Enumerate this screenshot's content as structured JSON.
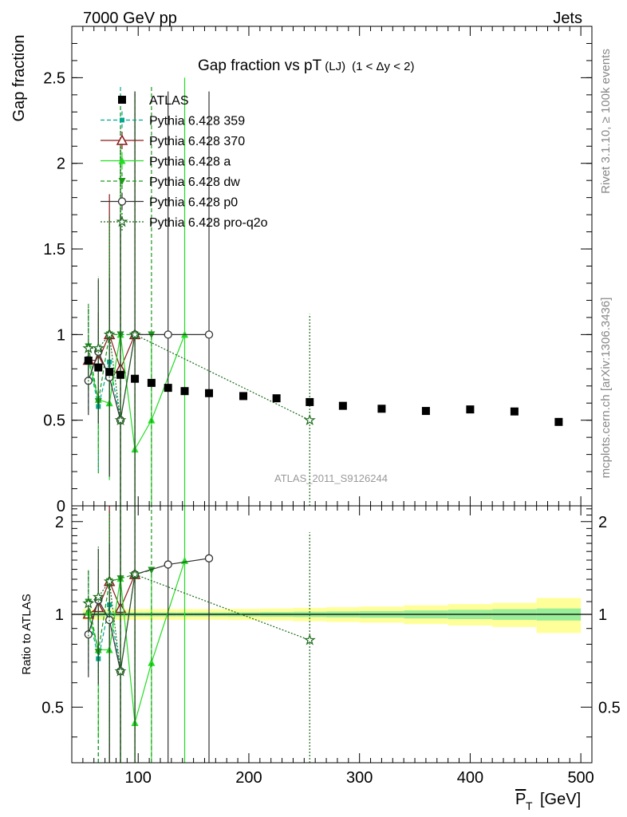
{
  "header": {
    "left": "7000 GeV pp",
    "right": "Jets"
  },
  "side": {
    "rivet": "Rivet 3.1.10, ≥ 100k events",
    "mcplots": "mcplots.cern.ch [arXiv:1306.3436]"
  },
  "chart_data": {
    "type": "scatter",
    "title": "Gap fraction vs pT",
    "title_sub": "(LJ)",
    "title_range": "(1 < Δy < 2)",
    "watermark": "ATLAS_2011_S9126244",
    "xlabel": "P",
    "xlabel_sub": "T",
    "xlabel_unit": "[GeV]",
    "ylabel": "Gap fraction",
    "ratio_ylabel": "Ratio to ATLAS",
    "xlim": [
      40,
      510
    ],
    "ylim": [
      0,
      2.8
    ],
    "ratio_ylim": [
      0.33,
      2.25
    ],
    "xticks": [
      100,
      200,
      300,
      400,
      500
    ],
    "xtick_labels": [
      "100",
      "200",
      "300",
      "400",
      "500"
    ],
    "yticks": [
      0,
      0.5,
      1,
      1.5,
      2,
      2.5
    ],
    "ytick_labels": [
      "0",
      "0.5",
      "1",
      "1.5",
      "2",
      "2.5"
    ],
    "ratio_yticks": [
      0.5,
      1,
      2
    ],
    "ratio_ytick_labels": [
      "0.5",
      "1",
      "2"
    ],
    "legend_position": "top-left",
    "data": {
      "name": "ATLAS",
      "x": [
        55,
        64,
        74,
        84,
        97,
        112,
        127,
        142,
        164,
        195,
        225,
        255,
        285,
        320,
        360,
        400,
        440,
        480
      ],
      "y": [
        0.848,
        0.808,
        0.782,
        0.765,
        0.742,
        0.718,
        0.689,
        0.67,
        0.658,
        0.641,
        0.628,
        0.606,
        0.584,
        0.567,
        0.554,
        0.563,
        0.551,
        0.49
      ],
      "band_edges": [
        50,
        60,
        70,
        80,
        90,
        105,
        120,
        135,
        150,
        180,
        210,
        240,
        270,
        300,
        340,
        380,
        420,
        460,
        500
      ],
      "band_stat": [
        0.015,
        0.015,
        0.015,
        0.015,
        0.015,
        0.015,
        0.015,
        0.015,
        0.015,
        0.016,
        0.018,
        0.02,
        0.022,
        0.025,
        0.03,
        0.035,
        0.04,
        0.045
      ],
      "band_total": [
        0.04,
        0.04,
        0.04,
        0.04,
        0.04,
        0.04,
        0.04,
        0.04,
        0.04,
        0.042,
        0.045,
        0.05,
        0.055,
        0.06,
        0.07,
        0.08,
        0.09,
        0.13
      ]
    },
    "series": [
      {
        "name": "Pythia 6.428 359",
        "color": "#00a88f",
        "marker": "square-small",
        "dash": "5,3",
        "x": [
          55,
          64,
          74,
          84
        ],
        "y": [
          0.86,
          0.58,
          0.84,
          0.5
        ],
        "err": [
          0.3,
          0.37,
          0.55,
          1.95
        ]
      },
      {
        "name": "Pythia 6.428 370",
        "color": "#8b1a1a",
        "marker": "triangle-open",
        "dash": "",
        "x": [
          55,
          64,
          74,
          84,
          97
        ],
        "y": [
          0.85,
          0.85,
          1.0,
          0.8,
          1.0
        ],
        "err": [
          0.12,
          0.28,
          0.82,
          1.3,
          1.42
        ]
      },
      {
        "name": "Pythia 6.428 a",
        "color": "#22dd22",
        "marker": "triangle",
        "dash": "",
        "x": [
          55,
          64,
          74,
          84,
          97,
          112,
          142
        ],
        "y": [
          0.86,
          0.62,
          0.6,
          1.0,
          0.33,
          0.5,
          1.0
        ],
        "err": [
          0.1,
          0.3,
          0.45,
          1.1,
          0.33,
          0.5,
          1.5
        ]
      },
      {
        "name": "Pythia 6.428 dw",
        "color": "#1a9a1a",
        "marker": "triangle-down",
        "dash": "5,3",
        "x": [
          55,
          64,
          74,
          84,
          97,
          112
        ],
        "y": [
          0.93,
          0.61,
          1.0,
          1.0,
          1.0,
          1.0
        ],
        "err": [
          0.25,
          0.42,
          0.65,
          1.4,
          1.42,
          1.45
        ]
      },
      {
        "name": "Pythia 6.428 p0",
        "color": "#333333",
        "marker": "circle-open",
        "dash": "",
        "x": [
          55,
          64,
          74,
          84,
          97,
          127,
          164
        ],
        "y": [
          0.73,
          0.9,
          0.75,
          0.5,
          1.0,
          1.0,
          1.0
        ],
        "err": [
          0.2,
          0.42,
          0.58,
          1.2,
          1.42,
          1.42,
          1.42
        ]
      },
      {
        "name": "Pythia 6.428 pro-q2o",
        "color": "#1a6a1a",
        "marker": "star",
        "dash": "2,2",
        "x": [
          55,
          64,
          74,
          84,
          97,
          255
        ],
        "y": [
          0.92,
          0.92,
          1.0,
          0.5,
          1.0,
          0.5
        ],
        "err": [
          0.25,
          0.42,
          0.7,
          1.7,
          1.42,
          0.62
        ]
      }
    ]
  }
}
